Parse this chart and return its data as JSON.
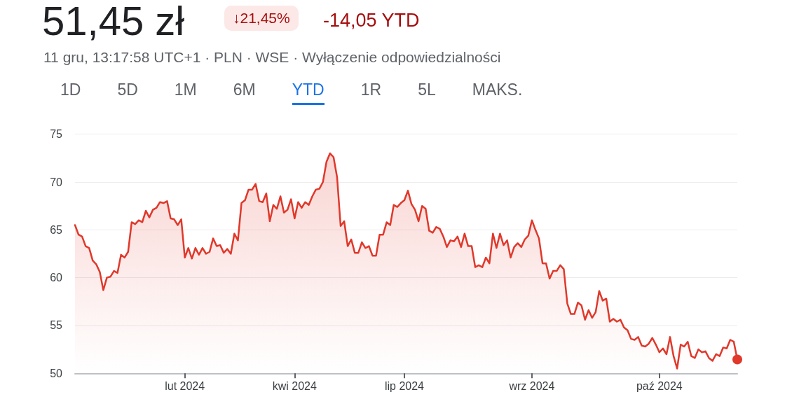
{
  "chart_data": {
    "type": "area",
    "title": "51,45 zł",
    "subtitle": "11 gru, 13:17:58 UTC+1 · PLN · WSE · Wyłączenie odpowiedzialności",
    "annotations": [
      "↓21,45%",
      "-14,05 YTD",
      "1D",
      "5D",
      "1M",
      "6M",
      "YTD",
      "1R",
      "5L",
      "MAKS."
    ],
    "categories": [
      null,
      null,
      null,
      null,
      null,
      null,
      null,
      null,
      null,
      null,
      null,
      null,
      null,
      null,
      null,
      null,
      null,
      null,
      null,
      null,
      null,
      null,
      null,
      null,
      null,
      null,
      null,
      null,
      null,
      null,
      null,
      "lut 2024",
      null,
      null,
      null,
      null,
      null,
      null,
      null,
      null,
      null,
      null,
      null,
      null,
      null,
      null,
      null,
      null,
      null,
      null,
      null,
      null,
      null,
      null,
      null,
      null,
      null,
      null,
      null,
      null,
      null,
      null,
      "kwi 2024",
      null,
      null,
      null,
      null,
      null,
      null,
      null,
      null,
      null,
      null,
      null,
      null,
      null,
      null,
      null,
      null,
      null,
      null,
      null,
      null,
      null,
      null,
      null,
      null,
      null,
      null,
      null,
      null,
      null,
      null,
      "lip 2024",
      null,
      null,
      null,
      null,
      null,
      null,
      null,
      null,
      null,
      null,
      null,
      null,
      null,
      null,
      null,
      null,
      null,
      null,
      null,
      null,
      null,
      null,
      null,
      null,
      null,
      null,
      null,
      null,
      null,
      null,
      null,
      null,
      null,
      null,
      null,
      "wrz 2024",
      null,
      null,
      null,
      null,
      null,
      null,
      null,
      null,
      null,
      null,
      null,
      null,
      null,
      null,
      null,
      null,
      null,
      null,
      null,
      null,
      null,
      null,
      null,
      null,
      null,
      null,
      null,
      null,
      null,
      null,
      null,
      null,
      null,
      null,
      null,
      "paź 2024",
      null,
      null,
      null,
      null,
      null,
      null,
      null,
      null,
      null,
      null,
      null,
      null,
      null,
      null,
      null,
      null,
      null,
      null,
      null,
      null,
      null,
      null
    ],
    "series": [
      {
        "color": "#e0382b",
        "values": [
          65.5,
          64.5,
          64.3,
          63.3,
          63.1,
          61.8,
          61.4,
          60.6,
          58.7,
          60.0,
          60.1,
          60.7,
          60.5,
          62.4,
          62.1,
          62.7,
          65.8,
          65.6,
          66.0,
          65.8,
          67.0,
          66.3,
          67.1,
          67.3,
          67.9,
          67.8,
          68.0,
          66.2,
          66.1,
          65.5,
          66.1,
          62.1,
          63.1,
          62.0,
          63.1,
          62.4,
          63.1,
          62.5,
          62.7,
          64.1,
          63.3,
          63.4,
          62.6,
          63.0,
          62.5,
          64.6,
          63.9,
          67.8,
          68.1,
          69.2,
          69.2,
          69.8,
          68.0,
          67.9,
          68.8,
          65.9,
          67.6,
          67.2,
          68.5,
          66.8,
          67.1,
          68.2,
          66.2,
          67.9,
          67.3,
          67.9,
          67.6,
          68.5,
          69.2,
          69.3,
          70.0,
          72.1,
          73.0,
          72.6,
          70.5,
          65.4,
          65.9,
          63.3,
          64.0,
          62.6,
          62.6,
          63.7,
          63.1,
          63.3,
          62.3,
          62.3,
          64.5,
          64.5,
          65.8,
          65.5,
          67.6,
          67.4,
          67.8,
          68.1,
          69.1,
          67.7,
          67.1,
          65.9,
          67.5,
          67.2,
          64.9,
          64.7,
          65.3,
          65.1,
          64.3,
          63.2,
          63.9,
          63.8,
          64.3,
          63.2,
          64.6,
          63.3,
          63.3,
          61.1,
          61.3,
          61.1,
          62.1,
          61.5,
          64.6,
          63.1,
          64.6,
          63.4,
          63.9,
          62.1,
          63.2,
          63.6,
          63.2,
          64.0,
          64.4,
          66.0,
          65.0,
          64.1,
          61.5,
          61.5,
          59.9,
          60.7,
          60.7,
          61.3,
          60.9,
          57.3,
          56.2,
          56.2,
          57.4,
          57.1,
          55.6,
          56.6,
          55.8,
          56.4,
          58.6,
          57.6,
          57.8,
          55.4,
          55.7,
          55.4,
          55.6,
          54.8,
          54.5,
          53.6,
          53.5,
          53.8,
          52.9,
          52.8,
          53.1,
          53.7,
          53.0,
          52.2,
          52.6,
          52.0,
          53.8,
          51.8,
          50.5,
          53.0,
          52.8,
          53.3,
          51.8,
          51.6,
          52.5,
          52.2,
          52.3,
          51.6,
          51.3,
          52.0,
          51.8,
          52.7,
          52.6,
          53.5,
          53.3,
          51.45
        ]
      }
    ],
    "ylim": [
      50,
      75
    ],
    "yticks": [
      50,
      55,
      60,
      65,
      70,
      75
    ],
    "grid": "y",
    "marker": "none",
    "line_style": "solid"
  }
}
